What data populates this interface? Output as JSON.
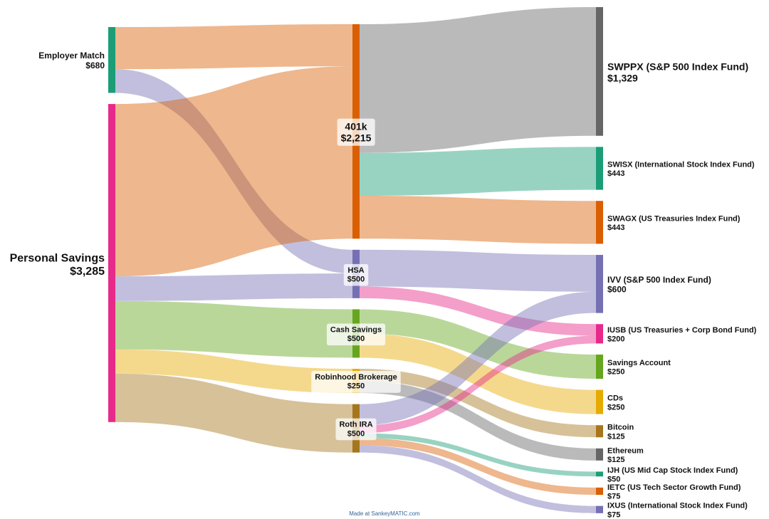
{
  "chart_data": {
    "type": "sankey",
    "nodes": [
      {
        "id": "employer",
        "name": "Employer Match",
        "value": 680,
        "value_label": "$680",
        "column": 0,
        "color": "#1b9e77"
      },
      {
        "id": "personal",
        "name": "Personal Savings",
        "value": 3285,
        "value_label": "$3,285",
        "column": 0,
        "color": "#e7298a"
      },
      {
        "id": "k401",
        "name": "401k",
        "value": 2215,
        "value_label": "$2,215",
        "column": 1,
        "color": "#d95f02"
      },
      {
        "id": "hsa",
        "name": "HSA",
        "value": 500,
        "value_label": "$500",
        "column": 1,
        "color": "#7570b3"
      },
      {
        "id": "cash",
        "name": "Cash Savings",
        "value": 500,
        "value_label": "$500",
        "column": 1,
        "color": "#66a61e"
      },
      {
        "id": "robinhood",
        "name": "Robinhood Brokerage",
        "value": 250,
        "value_label": "$250",
        "column": 1,
        "color": "#e6ab02"
      },
      {
        "id": "roth",
        "name": "Roth IRA",
        "value": 500,
        "value_label": "$500",
        "column": 1,
        "color": "#a6761d"
      },
      {
        "id": "swppx",
        "name": "SWPPX (S&P 500 Index Fund)",
        "value": 1329,
        "value_label": "$1,329",
        "column": 2,
        "color": "#666666"
      },
      {
        "id": "swisx",
        "name": "SWISX (International Stock Index Fund)",
        "value": 443,
        "value_label": "$443",
        "column": 2,
        "color": "#1b9e77"
      },
      {
        "id": "swagx",
        "name": "SWAGX (US Treasuries Index Fund)",
        "value": 443,
        "value_label": "$443",
        "column": 2,
        "color": "#d95f02"
      },
      {
        "id": "ivv",
        "name": "IVV (S&P 500 Index Fund)",
        "value": 600,
        "value_label": "$600",
        "column": 2,
        "color": "#7570b3"
      },
      {
        "id": "iusb",
        "name": "IUSB (US Treasuries + Corp Bond Fund)",
        "value": 200,
        "value_label": "$200",
        "column": 2,
        "color": "#e7298a"
      },
      {
        "id": "savacct",
        "name": "Savings Account",
        "value": 250,
        "value_label": "$250",
        "column": 2,
        "color": "#66a61e"
      },
      {
        "id": "cds",
        "name": "CDs",
        "value": 250,
        "value_label": "$250",
        "column": 2,
        "color": "#e6ab02"
      },
      {
        "id": "bitcoin",
        "name": "Bitcoin",
        "value": 125,
        "value_label": "$125",
        "column": 2,
        "color": "#a6761d"
      },
      {
        "id": "ethereum",
        "name": "Ethereum",
        "value": 125,
        "value_label": "$125",
        "column": 2,
        "color": "#666666"
      },
      {
        "id": "ijh",
        "name": "IJH (US Mid Cap Stock Index Fund)",
        "value": 50,
        "value_label": "$50",
        "column": 2,
        "color": "#1b9e77"
      },
      {
        "id": "ietc",
        "name": "IETC (US Tech Sector Growth Fund)",
        "value": 75,
        "value_label": "$75",
        "column": 2,
        "color": "#d95f02"
      },
      {
        "id": "ixus",
        "name": "IXUS (International Stock Index Fund)",
        "value": 75,
        "value_label": "$75",
        "column": 2,
        "color": "#7570b3"
      }
    ],
    "flows": [
      {
        "source": "employer",
        "target": "k401",
        "value": 435
      },
      {
        "source": "employer",
        "target": "hsa",
        "value": 245
      },
      {
        "source": "personal",
        "target": "k401",
        "value": 1780
      },
      {
        "source": "personal",
        "target": "hsa",
        "value": 255
      },
      {
        "source": "personal",
        "target": "cash",
        "value": 500
      },
      {
        "source": "personal",
        "target": "robinhood",
        "value": 250
      },
      {
        "source": "personal",
        "target": "roth",
        "value": 500
      },
      {
        "source": "k401",
        "target": "swppx",
        "value": 1329
      },
      {
        "source": "k401",
        "target": "swisx",
        "value": 443
      },
      {
        "source": "k401",
        "target": "swagx",
        "value": 443
      },
      {
        "source": "hsa",
        "target": "ivv",
        "value": 380
      },
      {
        "source": "hsa",
        "target": "iusb",
        "value": 120
      },
      {
        "source": "cash",
        "target": "savacct",
        "value": 250
      },
      {
        "source": "cash",
        "target": "cds",
        "value": 250
      },
      {
        "source": "robinhood",
        "target": "bitcoin",
        "value": 125
      },
      {
        "source": "robinhood",
        "target": "ethereum",
        "value": 125
      },
      {
        "source": "roth",
        "target": "ivv",
        "value": 220
      },
      {
        "source": "roth",
        "target": "iusb",
        "value": 80
      },
      {
        "source": "roth",
        "target": "ijh",
        "value": 50
      },
      {
        "source": "roth",
        "target": "ietc",
        "value": 75
      },
      {
        "source": "roth",
        "target": "ixus",
        "value": 75
      }
    ],
    "link_color": "target node color, translucent"
  },
  "credit": "Made at SankeyMATIC.com"
}
